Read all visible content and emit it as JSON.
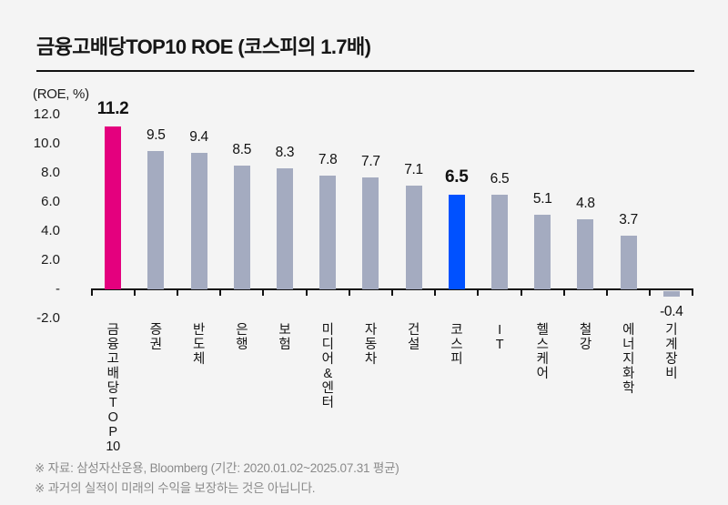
{
  "page": {
    "source_note": "※ 자료: 삼성자산운용, Bloomberg (기간: 2020.01.02~2025.07.31 평균)",
    "disclaimer": "※ 과거의 실적이 미래의 수익을 보장하는 것은 아닙니다."
  },
  "chart_data": {
    "type": "bar",
    "title": "금융고배당TOP10 ROE (코스피의 1.7배)",
    "unit_label": "(ROE, %)",
    "categories": [
      "금융고배당TOP10",
      "증권",
      "반도체",
      "은행",
      "보험",
      "미디어&엔터",
      "자동차",
      "건설",
      "코스피",
      "IT",
      "헬스케어",
      "철강",
      "에너지화학",
      "기계장비"
    ],
    "values": [
      11.2,
      9.5,
      9.4,
      8.5,
      8.3,
      7.8,
      7.7,
      7.1,
      6.5,
      6.5,
      5.1,
      4.8,
      3.7,
      -0.4
    ],
    "value_labels": [
      "11.2",
      "9.5",
      "9.4",
      "8.5",
      "8.3",
      "7.8",
      "7.7",
      "7.1",
      "6.5",
      "6.5",
      "5.1",
      "4.8",
      "3.7",
      "-0.4"
    ],
    "y_ticks": [
      {
        "label": "12.0",
        "value": 12
      },
      {
        "label": "10.0",
        "value": 10
      },
      {
        "label": "8.0",
        "value": 8
      },
      {
        "label": "6.0",
        "value": 6
      },
      {
        "label": "4.0",
        "value": 4
      },
      {
        "label": "2.0",
        "value": 2
      },
      {
        "label": "-",
        "value": 0
      },
      {
        "label": "-2.0",
        "value": -2
      }
    ],
    "ylim": [
      -2,
      12
    ],
    "xlabel": "",
    "ylabel": "(ROE, %)",
    "grid": false,
    "legend": "none",
    "emphasized": [
      {
        "index": 0,
        "color": "#e4007e",
        "label_bold": true
      },
      {
        "index": 8,
        "color": "#0051ff",
        "label_bold": true
      }
    ],
    "colors": {
      "default_bar": "#a4abc0",
      "highlight_bar": "#e4007e",
      "kospi_bar": "#0051ff",
      "background": "#f4f4f4",
      "axis": "#111111"
    }
  }
}
